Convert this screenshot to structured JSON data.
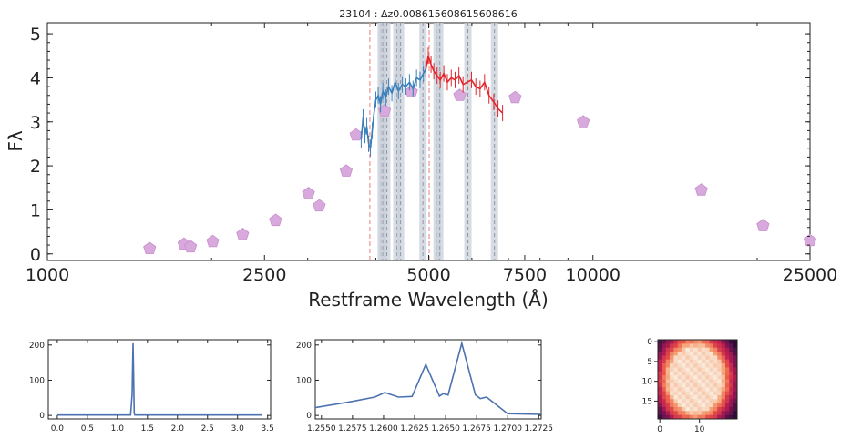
{
  "chart_data": [
    {
      "id": "main",
      "type": "line",
      "title": "23104 : Δz0.00861560861560861​6",
      "xlabel": "Restframe Wavelength (Å)",
      "ylabel": "Fλ",
      "xscale": "log",
      "xlim": [
        1000,
        25000
      ],
      "ylim": [
        -0.15,
        5.25
      ],
      "xticks": [
        1000,
        2500,
        5000,
        7500,
        10000,
        25000
      ],
      "xticklabels": [
        "1000",
        "2500",
        "5000",
        "7500",
        "10000",
        "25000"
      ],
      "yticks": [
        0,
        1,
        2,
        3,
        4,
        5
      ],
      "yticklabels": [
        "0",
        "1",
        "2",
        "3",
        "4",
        "5"
      ],
      "photometry": {
        "color": "#d8a9dc",
        "points": [
          {
            "x": 1540,
            "y": 0.12
          },
          {
            "x": 1780,
            "y": 0.22
          },
          {
            "x": 1830,
            "y": 0.16
          },
          {
            "x": 2010,
            "y": 0.28
          },
          {
            "x": 2280,
            "y": 0.44
          },
          {
            "x": 2620,
            "y": 0.76
          },
          {
            "x": 3010,
            "y": 1.37
          },
          {
            "x": 3150,
            "y": 1.09
          },
          {
            "x": 3530,
            "y": 1.88
          },
          {
            "x": 3680,
            "y": 2.7
          },
          {
            "x": 4150,
            "y": 3.25
          },
          {
            "x": 4650,
            "y": 3.68
          },
          {
            "x": 5700,
            "y": 3.6
          },
          {
            "x": 7200,
            "y": 3.55
          },
          {
            "x": 9600,
            "y": 3.0
          },
          {
            "x": 15800,
            "y": 1.45
          },
          {
            "x": 20500,
            "y": 0.64
          },
          {
            "x": 25000,
            "y": 0.3
          }
        ]
      },
      "series": [
        {
          "color": "#3a80bd",
          "x": [
            3760,
            3790,
            3820,
            3850,
            3880,
            3910,
            3940,
            3970,
            4000,
            4040,
            4080,
            4120,
            4170,
            4220,
            4280,
            4340,
            4400,
            4470,
            4540,
            4610,
            4680,
            4750,
            4820,
            4890,
            4940
          ],
          "y": [
            2.6,
            3.1,
            2.7,
            2.9,
            2.5,
            2.4,
            2.8,
            3.2,
            3.5,
            3.6,
            3.4,
            3.7,
            3.55,
            3.8,
            3.65,
            3.9,
            3.7,
            3.85,
            3.8,
            3.9,
            3.75,
            4.0,
            3.95,
            4.1,
            4.2
          ]
        },
        {
          "color": "#e3262b",
          "x": [
            4940,
            4990,
            5050,
            5110,
            5180,
            5250,
            5330,
            5410,
            5500,
            5590,
            5680,
            5780,
            5880,
            5990,
            6100,
            6210,
            6330,
            6450,
            6580,
            6700,
            6830
          ],
          "y": [
            4.2,
            4.5,
            4.3,
            4.15,
            4.05,
            3.95,
            4.1,
            3.9,
            4.0,
            3.95,
            4.05,
            3.85,
            3.9,
            3.95,
            3.8,
            3.75,
            3.9,
            3.6,
            3.45,
            3.3,
            3.2
          ]
        }
      ],
      "red_lines": [
        3900,
        5010
      ],
      "grey_bands": [
        4090,
        4120,
        4190,
        4370,
        4440,
        4880,
        5180,
        5240,
        5900,
        6600
      ]
    },
    {
      "id": "inset1",
      "type": "line",
      "xlim": [
        -0.15,
        3.55
      ],
      "ylim": [
        -10,
        215
      ],
      "xticks": [
        0.0,
        0.5,
        1.0,
        1.5,
        2.0,
        2.5,
        3.0,
        3.5
      ],
      "xticklabels": [
        "0.0",
        "0.5",
        "1.0",
        "1.5",
        "2.0",
        "2.5",
        "3.0",
        "3.5"
      ],
      "yticks": [
        0,
        100,
        200
      ],
      "yticklabels": [
        "0",
        "100",
        "200"
      ],
      "color": "#4c72b0",
      "x": [
        0.0,
        1.22,
        1.245,
        1.26,
        1.27,
        1.28,
        1.29,
        1.32,
        3.4
      ],
      "y": [
        1,
        1,
        60,
        205,
        120,
        5,
        1,
        1,
        1
      ]
    },
    {
      "id": "inset2",
      "type": "line",
      "xlim": [
        1.2545,
        1.2727
      ],
      "ylim": [
        -10,
        215
      ],
      "xticks": [
        1.255,
        1.2575,
        1.26,
        1.2625,
        1.265,
        1.2675,
        1.27,
        1.2725
      ],
      "xticklabels": [
        "1.2550",
        "1.2575",
        "1.2600",
        "1.2625",
        "1.2650",
        "1.2675",
        "1.2700",
        "1.2725"
      ],
      "yticks": [
        0,
        100,
        200
      ],
      "yticklabels": [
        "0",
        "100",
        "200"
      ],
      "color": "#4c72b0",
      "x": [
        1.2545,
        1.2575,
        1.2593,
        1.2601,
        1.2612,
        1.2623,
        1.2634,
        1.2645,
        1.2648,
        1.2652,
        1.2663,
        1.2674,
        1.2678,
        1.2683,
        1.27,
        1.2727
      ],
      "y": [
        22,
        40,
        52,
        65,
        52,
        54,
        145,
        55,
        62,
        58,
        205,
        58,
        48,
        52,
        5,
        3
      ]
    },
    {
      "id": "image",
      "type": "heatmap",
      "xlim": [
        -0.5,
        19.5
      ],
      "ylim": [
        19.5,
        -0.5
      ],
      "xticks": [
        0,
        10
      ],
      "xticklabels": [
        "0",
        "10"
      ],
      "yticks": [
        0,
        5,
        10,
        15
      ],
      "yticklabels": [
        "0",
        "5",
        "10",
        "15"
      ],
      "center": [
        9.0,
        9.5
      ],
      "radii": [
        7.6,
        9.4
      ],
      "colormap": "rocket"
    }
  ]
}
